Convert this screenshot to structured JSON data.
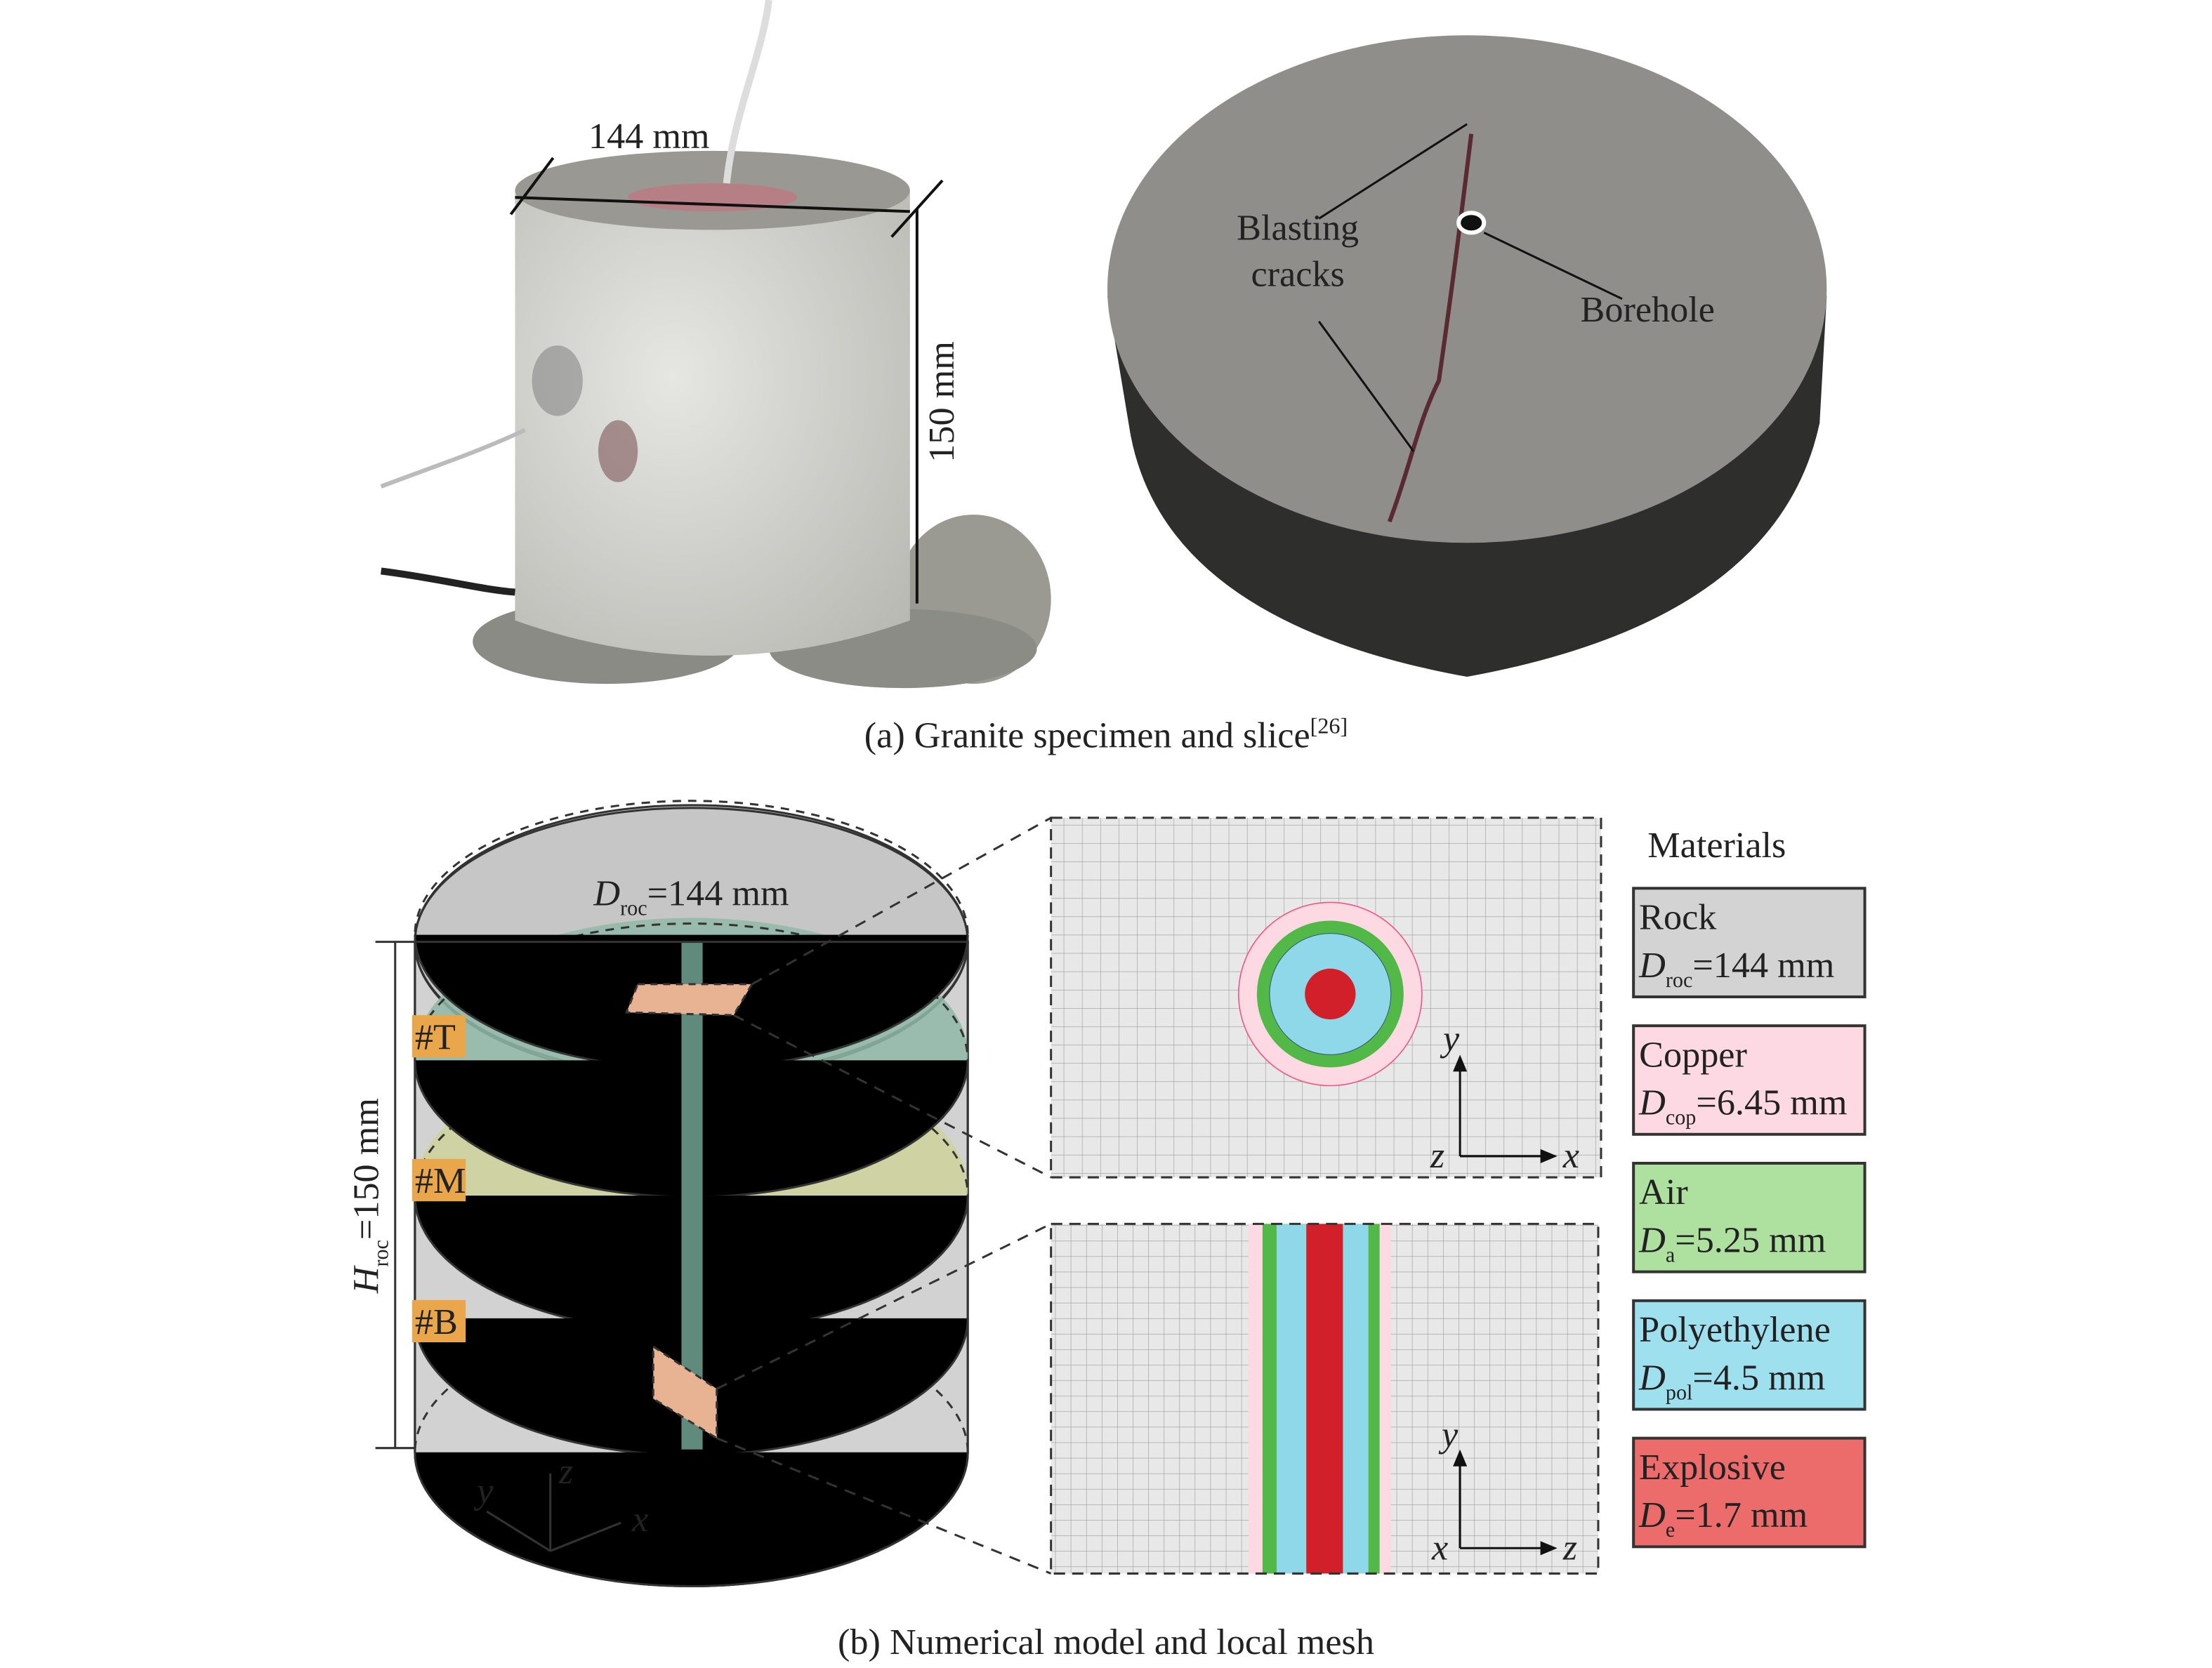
{
  "panel_a": {
    "specimen": {
      "diameter_label": "144 mm",
      "height_label": "150 mm"
    },
    "slice": {
      "crack_label": [
        "Blasting",
        "cracks"
      ],
      "borehole_label": "Borehole"
    },
    "caption": {
      "text": "(a) Granite specimen and slice",
      "ref": "[26]"
    }
  },
  "panel_b": {
    "model": {
      "diameter": {
        "symbol": "D",
        "sub": "roc",
        "text": "=144 mm"
      },
      "height": {
        "symbol": "H",
        "sub": "roc",
        "text": "=150 mm"
      },
      "sections": [
        "#T",
        "#M",
        "#B"
      ],
      "axes": [
        "y",
        "z",
        "x"
      ]
    },
    "top_mesh_axes": [
      "y",
      "z",
      "x"
    ],
    "side_mesh_axes": [
      "y",
      "x",
      "z"
    ],
    "materials": {
      "title": "Materials",
      "items": [
        {
          "name": "Rock",
          "symbol": "D",
          "sub": "roc",
          "value": "=144 mm",
          "color": "#d3d3d3"
        },
        {
          "name": "Copper",
          "symbol": "D",
          "sub": "cop",
          "value": "=6.45 mm",
          "color": "#fcd9e3"
        },
        {
          "name": "Air",
          "symbol": "D",
          "sub": "a",
          "value": "=5.25 mm",
          "color": "#aee0a0"
        },
        {
          "name": "Polyethylene",
          "symbol": "D",
          "sub": "pol",
          "value": "=4.5 mm",
          "color": "#9fe0ef"
        },
        {
          "name": "Explosive",
          "symbol": "D",
          "sub": "e",
          "value": "=1.7 mm",
          "color": "#ec6b6b"
        }
      ]
    },
    "caption": "(b) Numerical model and local mesh"
  }
}
